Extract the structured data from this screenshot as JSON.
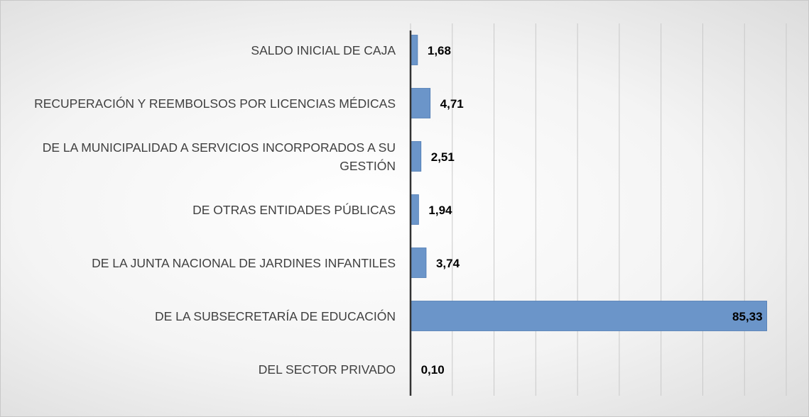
{
  "chart_data": {
    "type": "barh",
    "categories": [
      "SALDO INICIAL DE CAJA",
      "RECUPERACIÓN Y REEMBOLSOS POR LICENCIAS MÉDICAS",
      "DE LA MUNICIPALIDAD A SERVICIOS INCORPORADOS A SU GESTIÓN",
      "DE OTRAS ENTIDADES PÚBLICAS",
      "DE LA JUNTA NACIONAL DE JARDINES INFANTILES",
      "DE LA SUBSECRETARÍA DE EDUCACIÓN",
      "DEL SECTOR PRIVADO"
    ],
    "values": [
      1.68,
      4.71,
      2.51,
      1.94,
      3.74,
      85.33,
      0.1
    ],
    "value_labels": [
      "1,68",
      "4,71",
      "2,51",
      "1,94",
      "3,74",
      "85,33",
      "0,10"
    ],
    "color": "#6b95c9",
    "xlim": [
      0,
      90
    ],
    "xticks": [
      0,
      10,
      20,
      30,
      40,
      50,
      60,
      70,
      80,
      90
    ],
    "grid": true
  }
}
